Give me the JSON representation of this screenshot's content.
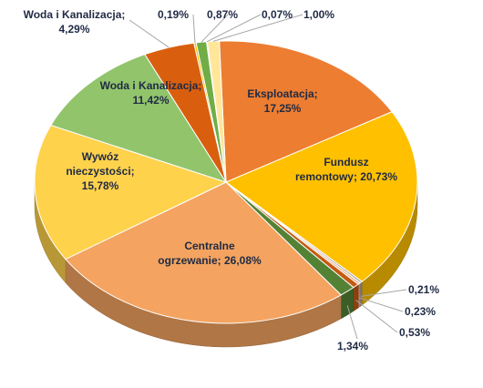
{
  "chart_data": {
    "type": "pie",
    "slices": [
      {
        "label": "Eksploatacja",
        "value": 17.25,
        "value_text": "17,25%",
        "color": "#ED7D31"
      },
      {
        "label": "Fundusz remontowy",
        "value": 20.73,
        "value_text": "20,73%",
        "color": "#FFC000"
      },
      {
        "label": "",
        "value": 0.21,
        "value_text": "0,21%",
        "color": "#A5A5A5"
      },
      {
        "label": "",
        "value": 0.23,
        "value_text": "0,23%",
        "color": "#F4B183"
      },
      {
        "label": "",
        "value": 0.53,
        "value_text": "0,53%",
        "color": "#C55A11"
      },
      {
        "label": "",
        "value": 1.34,
        "value_text": "1,34%",
        "color": "#548235"
      },
      {
        "label": "Centralne ogrzewanie",
        "value": 26.08,
        "value_text": "26,08%",
        "color": "#F4A460"
      },
      {
        "label": "Wywóz nieczystości",
        "value": 15.78,
        "value_text": "15,78%",
        "color": "#FFD24C"
      },
      {
        "label": "Woda i Kanalizacja",
        "value": 11.42,
        "value_text": "11,42%",
        "color": "#92C46C"
      },
      {
        "label": "Woda i Kanalizacja",
        "value": 4.29,
        "value_text": "4,29%",
        "color": "#D95F0E"
      },
      {
        "label": "",
        "value": 0.19,
        "value_text": "0,19%",
        "color": "#FFC000"
      },
      {
        "label": "",
        "value": 0.87,
        "value_text": "0,87%",
        "color": "#70AD47"
      },
      {
        "label": "",
        "value": 0.07,
        "value_text": "0,07%",
        "color": "#A5A5A5"
      },
      {
        "label": "",
        "value": 1.0,
        "value_text": "1,00%",
        "color": "#FFE699"
      }
    ],
    "labels": {
      "eksploatacja_line1": "Eksploatacja;",
      "eksploatacja_line2": "17,25%",
      "fundusz_line1": "Fundusz",
      "fundusz_line2": "remontowy; 20,73%",
      "centralne_line1": "Centralne",
      "centralne_line2": "ogrzewanie; 26,08%",
      "wywoz_line1": "Wywóz",
      "wywoz_line2": "nieczystości;",
      "wywoz_line3": "15,78%",
      "woda_inner_line1": "Woda i Kanalizacja;",
      "woda_inner_line2": "11,42%",
      "woda_outer_line1": "Woda i Kanalizacja;",
      "woda_outer_line2": "4,29%",
      "small_019": "0,19%",
      "small_087": "0,87%",
      "small_007": "0,07%",
      "small_100": "1,00%",
      "small_021": "0,21%",
      "small_023": "0,23%",
      "small_053": "0,53%",
      "small_134": "1,34%"
    },
    "legend": "none",
    "style": "3d-pie",
    "leader_line_color": "#a6a6a6"
  }
}
